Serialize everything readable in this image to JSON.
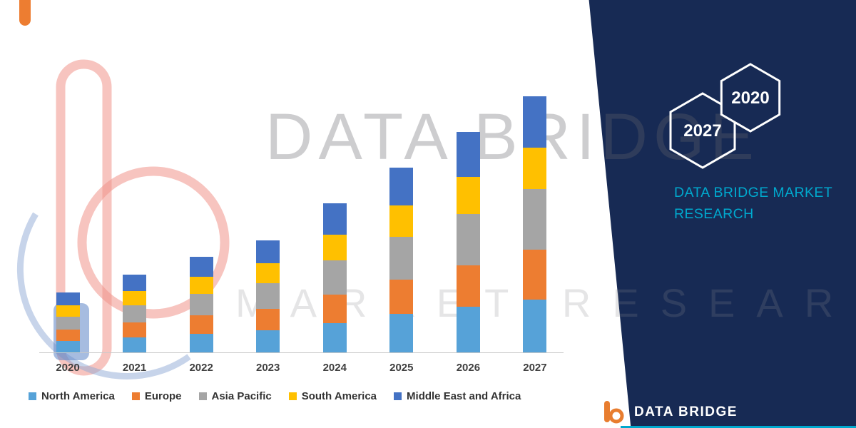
{
  "watermark": {
    "line1": "DATA BRIDGE",
    "line2": "MARKET RESEARCH"
  },
  "side_panel": {
    "color": "#172A54",
    "hexagons": [
      {
        "label": "2027"
      },
      {
        "label": "2020"
      }
    ],
    "tagline_line1": "DATA BRIDGE MARKET",
    "tagline_line2": "RESEARCH",
    "tagline_color": "#00A9CE"
  },
  "footer_logo": {
    "text": "DATA BRIDGE"
  },
  "chart_data": {
    "type": "bar",
    "stacked": true,
    "title": "",
    "xlabel": "",
    "ylabel": "",
    "categories": [
      "2020",
      "2021",
      "2022",
      "2023",
      "2024",
      "2025",
      "2026",
      "2027"
    ],
    "series": [
      {
        "name": "North America",
        "color": "#56A2D8",
        "values": [
          17,
          22,
          27,
          32,
          42,
          55,
          65,
          75
        ]
      },
      {
        "name": "Europe",
        "color": "#ED7D31",
        "values": [
          16,
          21,
          26,
          30,
          40,
          48,
          58,
          70
        ]
      },
      {
        "name": "Asia Pacific",
        "color": "#A5A5A5",
        "values": [
          18,
          24,
          30,
          36,
          48,
          60,
          72,
          85
        ]
      },
      {
        "name": "South America",
        "color": "#FFC000",
        "values": [
          16,
          20,
          24,
          28,
          36,
          44,
          52,
          58
        ]
      },
      {
        "name": "Middle East and Africa",
        "color": "#4472C4",
        "values": [
          18,
          23,
          28,
          32,
          44,
          53,
          63,
          72
        ]
      }
    ],
    "ylim": [
      0,
      380
    ],
    "grid": false,
    "legend_position": "bottom",
    "axes": "x-axis years only, no y-axis shown"
  }
}
